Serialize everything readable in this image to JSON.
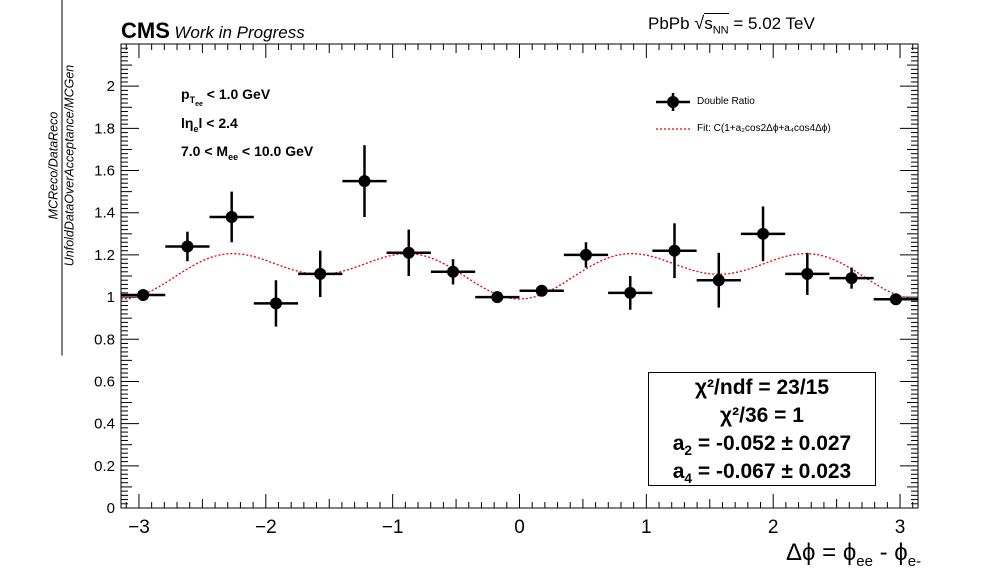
{
  "header": {
    "experiment": "CMS",
    "status": "Work in Progress",
    "collision": "PbPb ",
    "sqrt_label": "s",
    "sqrt_sub": "NN",
    "energy": " = 5.02 TeV"
  },
  "cuts": [
    {
      "pre": "p",
      "sub": "T",
      "subsub": "ee",
      "post": " < 1.0 GeV"
    },
    {
      "pre": "lη",
      "sub": "e",
      "post": "l < 2.4"
    },
    {
      "pre": "7.0 < M",
      "sub": "ee",
      "post": " < 10.0 GeV"
    }
  ],
  "legend": {
    "data_label": "Double Ratio",
    "fit_label": "Fit: C(1+a₂cos2Δϕ+a₄cos4Δϕ)"
  },
  "fit_box": {
    "line1": "χ²/ndf = 23/15",
    "line2": "χ²/36 = 1",
    "a2_pre": "a",
    "a2_sub": "2",
    "a2_post": " = -0.052 ± 0.027",
    "a4_pre": "a",
    "a4_sub": "4",
    "a4_post": " = -0.067 ± 0.023"
  },
  "axis": {
    "ylabel_top": "MCReco/DataReco",
    "ylabel_bottom": "UnfoldDataOverAcceptance/MCGen",
    "xlabel_pre": "Δϕ = ϕ",
    "xlabel_sub1": "ee",
    "xlabel_mid": " - ϕ",
    "xlabel_sub2": "e-"
  },
  "chart_data": {
    "type": "scatter",
    "xlim": [
      -3.1416,
      3.1416
    ],
    "ylim": [
      0,
      2.2
    ],
    "x_ticks": [
      -3,
      -2,
      -1,
      0,
      1,
      2,
      3
    ],
    "x_tick_labels": [
      "−3",
      "−2",
      "−1",
      "0",
      "1",
      "2",
      "3"
    ],
    "y_ticks": [
      0,
      0.2,
      0.4,
      0.6,
      0.8,
      1,
      1.2,
      1.4,
      1.6,
      1.8,
      2
    ],
    "y_tick_labels": [
      "0",
      "0.2",
      "0.4",
      "0.6",
      "0.8",
      "1",
      "1.2",
      "1.4",
      "1.6",
      "1.8",
      "2"
    ],
    "bin_half_width": 0.1745,
    "series": [
      {
        "name": "Double Ratio",
        "x": [
          -2.967,
          -2.618,
          -2.269,
          -1.92,
          -1.571,
          -1.222,
          -0.873,
          -0.524,
          -0.175,
          0.175,
          0.524,
          0.873,
          1.222,
          1.571,
          1.92,
          2.269,
          2.618,
          2.967
        ],
        "y": [
          1.01,
          1.24,
          1.38,
          0.97,
          1.11,
          1.55,
          1.21,
          1.12,
          1.0,
          1.03,
          1.2,
          1.02,
          1.22,
          1.08,
          1.3,
          1.11,
          1.09,
          0.99
        ],
        "yerr": [
          0.02,
          0.07,
          0.12,
          0.11,
          0.11,
          0.17,
          0.11,
          0.06,
          0.02,
          0.02,
          0.06,
          0.08,
          0.13,
          0.13,
          0.13,
          0.1,
          0.05,
          0.02
        ]
      }
    ],
    "fit": {
      "name": "Fit: C(1+a₂cos2Δϕ+a₄cos4Δϕ)",
      "C": 1.125,
      "a2": -0.052,
      "a4": -0.067,
      "color": "#ee0000"
    },
    "grid": false
  }
}
